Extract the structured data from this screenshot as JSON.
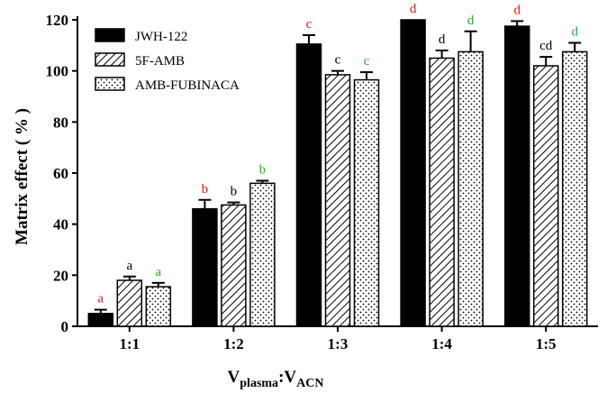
{
  "chart_data": {
    "type": "bar",
    "categories": [
      "1:1",
      "1:2",
      "1:3",
      "1:4",
      "1:5"
    ],
    "series": [
      {
        "name": "JWH-122",
        "values": [
          5,
          46,
          110.5,
          120,
          117.5
        ],
        "errors": [
          1.5,
          3.5,
          3.5,
          0,
          2
        ],
        "color": "#000000",
        "pattern": "solid"
      },
      {
        "name": "5F-AMB",
        "values": [
          18,
          47.5,
          98.5,
          105,
          102
        ],
        "errors": [
          1.5,
          1,
          1.5,
          3,
          3.5
        ],
        "color": "#ffffff",
        "pattern": "hatch"
      },
      {
        "name": "AMB-FUBINACA",
        "values": [
          15.5,
          56,
          96.5,
          107.5,
          107.5
        ],
        "errors": [
          1.5,
          1,
          3,
          8,
          3.5
        ],
        "color": "#ffffff",
        "pattern": "dots"
      }
    ],
    "annotations": [
      [
        "a",
        "a",
        "a"
      ],
      [
        "b",
        "b",
        "b"
      ],
      [
        "c",
        "c",
        "c"
      ],
      [
        "d",
        "d",
        "d"
      ],
      [
        "d",
        "cd",
        "d"
      ]
    ],
    "annotation_colors": [
      "#e8191a",
      "#000000",
      "#22b322"
    ],
    "ylabel": "Matrix effect ( % )",
    "xlabel": {
      "main": "V",
      "sub1": "plasma",
      "sep": ":V",
      "sub2": "ACN"
    },
    "ylim": [
      0,
      120
    ],
    "yticks": [
      0,
      20,
      40,
      60,
      80,
      100,
      120
    ],
    "legend_position": "top-left",
    "grid": false
  }
}
